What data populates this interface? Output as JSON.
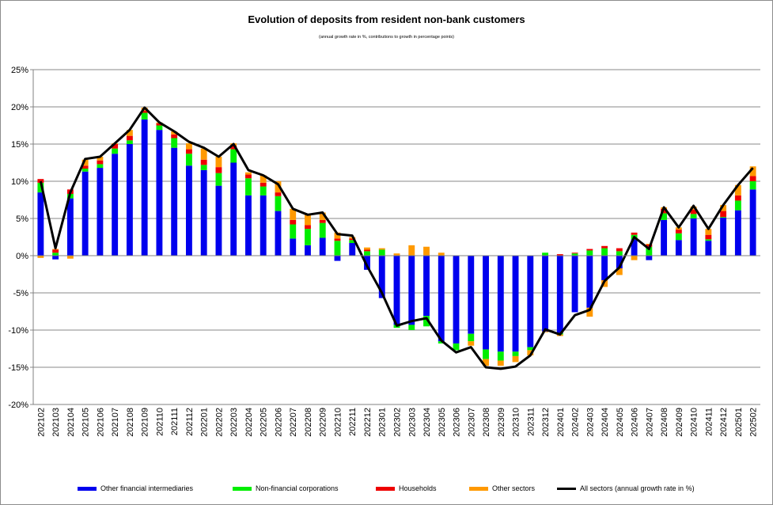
{
  "chart_data": {
    "type": "bar",
    "stacked": true,
    "title": "Evolution of deposits from resident non-bank customers",
    "subtitle": "(annual growth rate in %, contributions to growth in percentage points)",
    "xlabel": "",
    "ylabel": "",
    "ylim": [
      -20,
      25
    ],
    "yticks": [
      -20,
      -15,
      -10,
      -5,
      0,
      5,
      10,
      15,
      20,
      25
    ],
    "ytick_labels": [
      "-20%",
      "-15%",
      "-10%",
      "-5%",
      "0%",
      "5%",
      "10%",
      "15%",
      "20%",
      "25%"
    ],
    "grid": true,
    "legend_position": "bottom",
    "categories": [
      "202102",
      "202103",
      "202104",
      "202105",
      "202106",
      "202107",
      "202108",
      "202109",
      "202110",
      "202111",
      "202112",
      "202201",
      "202202",
      "202203",
      "202204",
      "202205",
      "202206",
      "202207",
      "202208",
      "202209",
      "202210",
      "202211",
      "202212",
      "202301",
      "202302",
      "202303",
      "202304",
      "202305",
      "202306",
      "202307",
      "202308",
      "202309",
      "202310",
      "202311",
      "202312",
      "202401",
      "202402",
      "202403",
      "202404",
      "202405",
      "202406",
      "202407",
      "202408",
      "202409",
      "202410",
      "202411",
      "202412",
      "202501",
      "202502"
    ],
    "series": [
      {
        "name": "Other financial intermediaries",
        "kind": "bar",
        "color": "#0000ee",
        "values": [
          8.5,
          -0.5,
          7.7,
          11.3,
          11.8,
          13.7,
          15.0,
          18.3,
          16.9,
          14.5,
          12.1,
          11.5,
          9.4,
          12.5,
          8.1,
          8.1,
          6.0,
          2.3,
          1.4,
          2.4,
          -0.7,
          1.7,
          -1.9,
          -5.7,
          -9.3,
          -9.3,
          -8.1,
          -11.5,
          -11.8,
          -10.5,
          -12.6,
          -12.9,
          -12.9,
          -12.3,
          -10.2,
          -10.4,
          -7.6,
          -7.0,
          -3.3,
          -1.7,
          2.2,
          -0.6,
          4.8,
          2.1,
          5.0,
          2.0,
          5.1,
          6.1,
          8.9
        ]
      },
      {
        "name": "Non-financial corporations",
        "kind": "bar",
        "color": "#00ee00",
        "values": [
          1.3,
          0.4,
          0.6,
          0.4,
          0.5,
          0.7,
          0.5,
          0.9,
          0.6,
          1.3,
          1.6,
          0.7,
          1.7,
          1.8,
          2.3,
          1.2,
          2.0,
          1.9,
          2.2,
          2.0,
          2.0,
          0.4,
          0.6,
          0.8,
          -0.4,
          -0.7,
          -1.4,
          -0.3,
          -0.9,
          -1.0,
          -1.3,
          -1.2,
          -0.6,
          -0.4,
          0.4,
          -0.2,
          0.3,
          0.7,
          1.0,
          0.6,
          0.6,
          1.2,
          0.9,
          0.9,
          0.6,
          0.2,
          0.1,
          1.3,
          1.1
        ]
      },
      {
        "name": "Households",
        "kind": "bar",
        "color": "#ee0000",
        "values": [
          0.5,
          0.4,
          0.6,
          0.4,
          0.5,
          0.6,
          0.6,
          0.3,
          0.3,
          0.5,
          0.6,
          0.7,
          0.8,
          0.5,
          0.5,
          0.5,
          0.5,
          0.6,
          0.5,
          0.4,
          0.3,
          0.2,
          0.2,
          0.0,
          0.0,
          0.0,
          0.0,
          0.0,
          0.0,
          0.0,
          0.0,
          0.0,
          0.0,
          0.0,
          0.0,
          0.2,
          0.1,
          0.2,
          0.3,
          0.4,
          0.3,
          0.3,
          0.6,
          0.5,
          0.6,
          0.6,
          0.8,
          0.7,
          0.7
        ]
      },
      {
        "name": "Other sectors",
        "kind": "bar",
        "color": "#ff9900",
        "values": [
          -0.3,
          0.1,
          -0.4,
          0.8,
          0.5,
          0.1,
          0.8,
          0.4,
          0.1,
          0.4,
          0.8,
          1.5,
          1.4,
          0.3,
          0.3,
          1.0,
          1.5,
          1.5,
          1.4,
          1.0,
          0.8,
          0.2,
          0.3,
          0.2,
          0.3,
          1.4,
          1.2,
          0.4,
          0.0,
          -0.6,
          -0.9,
          -0.7,
          -0.8,
          -0.7,
          -0.1,
          -0.2,
          0.0,
          -1.2,
          -0.9,
          -0.9,
          -0.6,
          0.1,
          0.2,
          0.3,
          0.4,
          0.8,
          0.8,
          1.4,
          1.3
        ]
      },
      {
        "name": "All sectors (annual growth rate in %)",
        "kind": "line",
        "color": "#000000",
        "values": [
          10.0,
          1.0,
          8.5,
          13.0,
          13.3,
          15.1,
          16.9,
          19.9,
          17.9,
          16.7,
          15.3,
          14.5,
          13.3,
          15.0,
          11.5,
          10.8,
          9.6,
          6.3,
          5.5,
          5.8,
          2.9,
          2.7,
          -1.4,
          -5.0,
          -9.4,
          -8.8,
          -8.4,
          -11.4,
          -13.0,
          -12.3,
          -15.0,
          -15.2,
          -14.9,
          -13.4,
          -9.9,
          -10.6,
          -8.0,
          -7.3,
          -3.4,
          -1.6,
          2.5,
          0.9,
          6.5,
          3.8,
          6.7,
          3.6,
          6.8,
          9.5,
          11.8
        ]
      }
    ]
  }
}
